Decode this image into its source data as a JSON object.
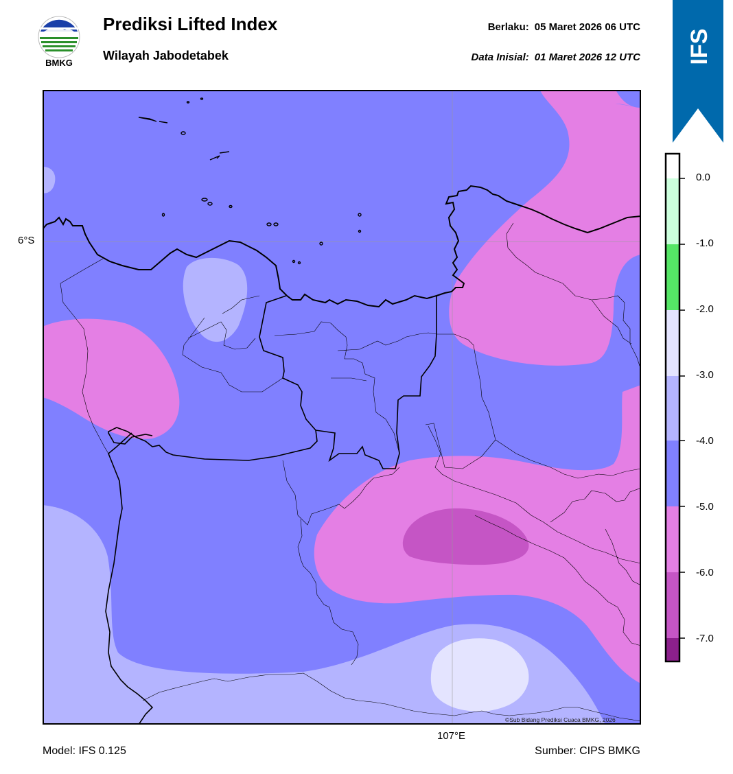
{
  "header": {
    "title": "Prediksi Lifted Index",
    "subtitle": "Wilayah Jabodetabek",
    "valid_label": "Berlaku:",
    "valid_value": "05 Maret 2026 06 UTC",
    "init_label": "Data Inisial:",
    "init_value": "01 Maret 2026 12 UTC"
  },
  "logo": {
    "text": "BMKG",
    "icon": "bmkg-logo"
  },
  "model_badge": {
    "text": "IFS",
    "color": "#0069ac"
  },
  "map": {
    "lat_label": "6°S",
    "lon_label": "107°E",
    "copyright": "©Sub Bidang Prediksi Cuaca BMKG, 2026"
  },
  "colorbar": {
    "ticks": [
      "0.0",
      "-1.0",
      "-2.0",
      "-3.0",
      "-4.0",
      "-5.0",
      "-6.0",
      "-7.0"
    ],
    "colors": {
      "above_0": "#ffffff",
      "0_to_-1": "#ccffdd",
      "-1_to_-2": "#55e566",
      "-2_to_-3": "#e4e4ff",
      "-3_to_-4": "#b4b4ff",
      "-4_to_-5": "#8080ff",
      "-5_to_-6": "#e47fe4",
      "-6_to_-7": "#c555c5",
      "below_-7": "#8c208c"
    }
  },
  "footer": {
    "model": "Model: IFS 0.125",
    "source": "Sumber: CIPS BMKG"
  }
}
